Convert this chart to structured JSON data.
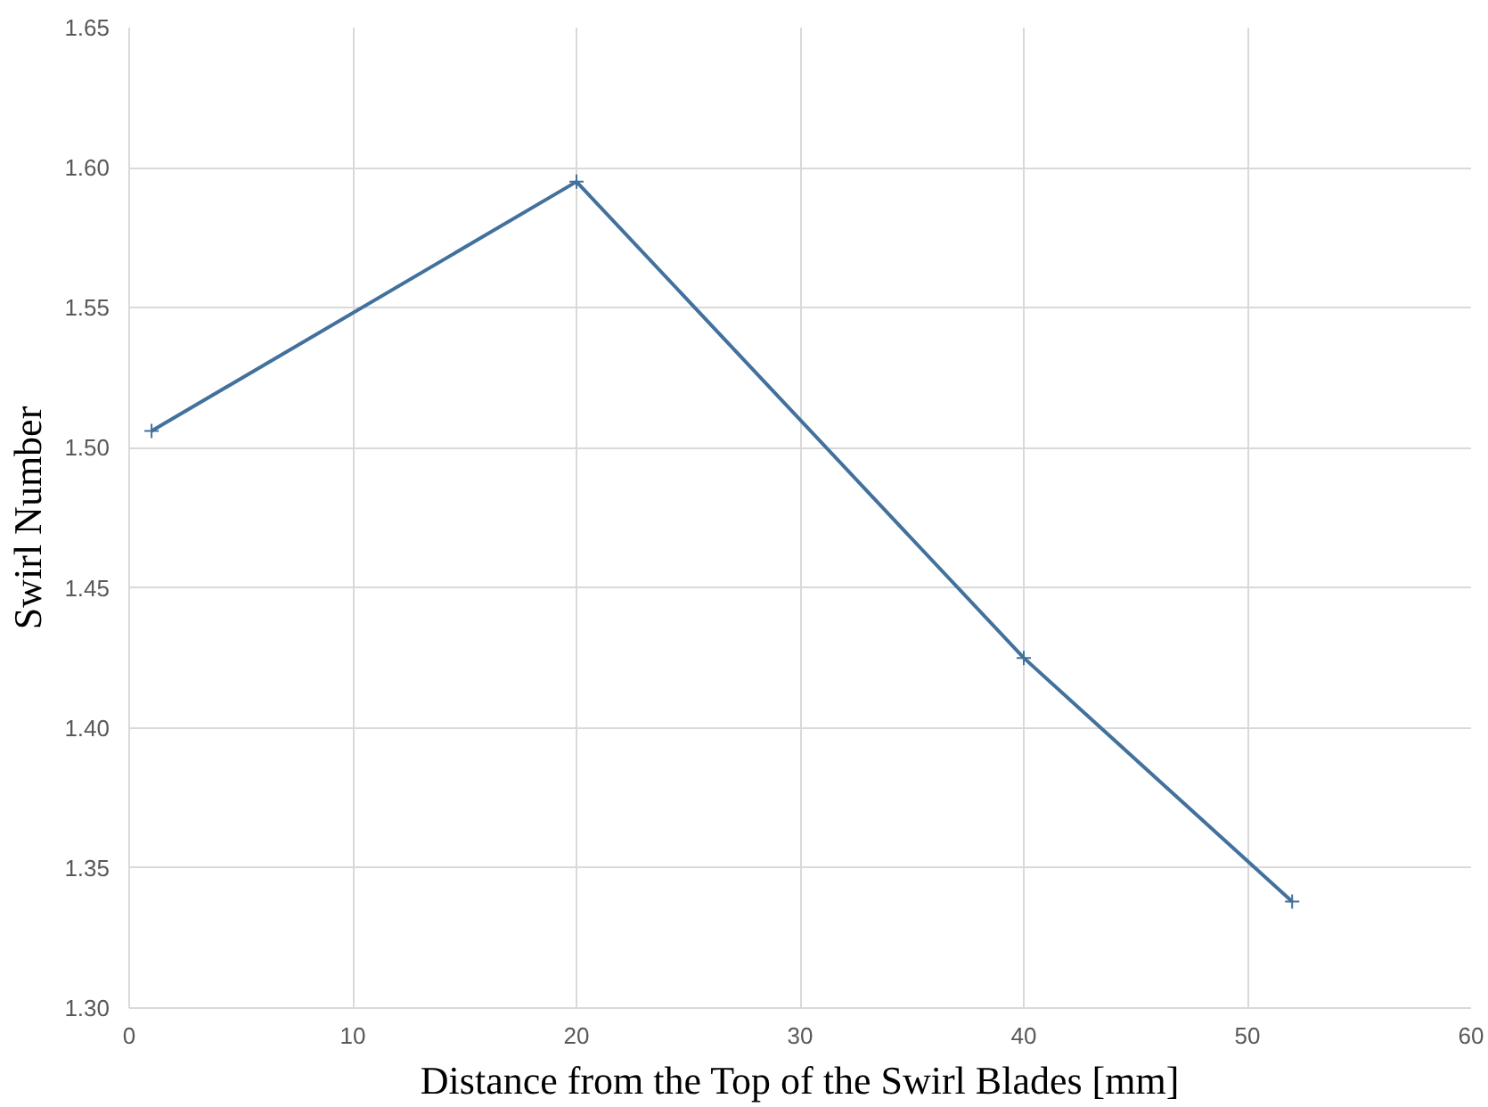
{
  "chart_data": {
    "type": "line",
    "xlabel": "Distance from the Top of the Swirl Blades [mm]",
    "ylabel": "Swirl Number",
    "x": [
      1,
      20,
      40,
      52
    ],
    "series": [
      {
        "color": "#41719c",
        "values": [
          1.506,
          1.595,
          1.425,
          1.338
        ]
      }
    ],
    "xlim": [
      0,
      60
    ],
    "xticks": [
      0,
      10,
      20,
      30,
      40,
      50,
      60
    ],
    "ylim": [
      1.3,
      1.65
    ],
    "yticks": [
      {
        "value": 1.3,
        "label": "1.30"
      },
      {
        "value": 1.35,
        "label": "1.35"
      },
      {
        "value": 1.4,
        "label": "1.40"
      },
      {
        "value": 1.45,
        "label": "1.45"
      },
      {
        "value": 1.5,
        "label": "1.50"
      },
      {
        "value": 1.55,
        "label": "1.55"
      },
      {
        "value": 1.6,
        "label": "1.60"
      },
      {
        "value": 1.65,
        "label": "1.65"
      }
    ],
    "grid": true,
    "marker": "cross",
    "line_style": "solid"
  }
}
